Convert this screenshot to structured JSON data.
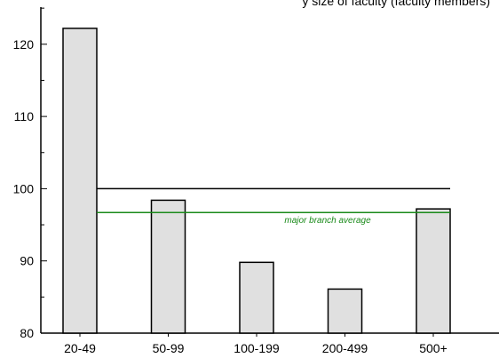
{
  "chart_data": {
    "type": "bar",
    "title_fragment": "y size of faculty (faculty members)",
    "categories": [
      "20-49",
      "50-99",
      "100-199",
      "200-499",
      "500+"
    ],
    "values": [
      122.2,
      98.4,
      89.8,
      86.1,
      97.2
    ],
    "ylim": [
      80,
      125
    ],
    "yticks": [
      80,
      90,
      100,
      110,
      120
    ],
    "baseline_value": 100,
    "reference_line": {
      "value": 96.7,
      "label": "major branch average",
      "color": "#1a8a1a"
    },
    "bar_fill": "#e0e0e0",
    "bar_stroke": "#000000",
    "grid": false
  }
}
